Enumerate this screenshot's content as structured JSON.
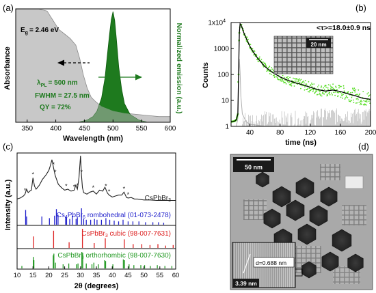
{
  "panels": {
    "a": {
      "letter": "(a)"
    },
    "b": {
      "letter": "(b)"
    },
    "c": {
      "letter": "(c)"
    },
    "d": {
      "letter": "(d)"
    }
  },
  "chart_data": [
    {
      "panel": "(a)",
      "type": "area",
      "xlabel": "Wavelength (nm)",
      "ylabel_left": "Absorbance",
      "ylabel_right": "Normalized emission (a.u.)",
      "xlim": [
        330,
        600
      ],
      "x_ticks": [
        "350",
        "400",
        "450",
        "500",
        "550",
        "600"
      ],
      "annotations": {
        "eg": "E",
        "eg_sub": "g",
        "eg_value": "= 2.46 eV",
        "lambda": "λ",
        "lambda_sub": "PL",
        "lambda_value": "= 500 nm",
        "fwhm": "FWHM = 27.5 nm",
        "qy": "QY = 72%"
      },
      "colors": {
        "absorbance": "#c8c8c8",
        "emission": "#1e7a1e",
        "overlap": "#7f9f7f"
      },
      "series": [
        {
          "x": [
            330,
            350,
            370,
            385,
            395,
            405,
            415,
            425,
            435,
            442,
            448,
            455,
            462,
            470,
            480,
            490,
            500,
            520,
            540,
            560,
            580,
            600
          ],
          "y": [
            1.0,
            1.0,
            1.0,
            0.98,
            0.9,
            0.82,
            0.78,
            0.74,
            0.68,
            0.56,
            0.42,
            0.3,
            0.22,
            0.18,
            0.14,
            0.12,
            0.1,
            0.08,
            0.07,
            0.06,
            0.05,
            0.05
          ]
        },
        {
          "x": [
            440,
            455,
            465,
            472,
            480,
            486,
            490,
            494,
            497,
            500,
            503,
            506,
            510,
            515,
            520,
            530,
            545,
            560,
            600
          ],
          "y": [
            0.0,
            0.02,
            0.05,
            0.1,
            0.22,
            0.4,
            0.6,
            0.8,
            0.93,
            1.0,
            0.92,
            0.75,
            0.5,
            0.3,
            0.17,
            0.07,
            0.02,
            0.0,
            0.0
          ]
        }
      ]
    },
    {
      "panel": "(b)",
      "type": "scatter",
      "xlabel": "time (ns)",
      "ylabel": "Counts",
      "y_scale": "log",
      "ylim": [
        1,
        10000
      ],
      "xlim": [
        15,
        200
      ],
      "x_ticks": [
        "40",
        "80",
        "120",
        "160",
        "200"
      ],
      "y_ticks": [
        "1",
        "10",
        "100",
        "1000",
        "1x10"
      ],
      "y_tick_exp": "4",
      "legend": "<τ>=18.0±0.9 ns",
      "scalebar": "20 nm",
      "colors": {
        "data": "#55dd22",
        "fit": "#000000",
        "irf": "#b0b0b0"
      },
      "series": [
        {
          "x": [
            15,
            20,
            22,
            24,
            25,
            26,
            27,
            28,
            30,
            32,
            35,
            40,
            45,
            50,
            60,
            70,
            80,
            90,
            100,
            110,
            120,
            130,
            140,
            150,
            160,
            170,
            180,
            190,
            200
          ],
          "y": [
            1.5,
            1.6,
            1.8,
            3,
            100,
            4000,
            9000,
            8500,
            6000,
            4000,
            2500,
            1200,
            700,
            430,
            200,
            120,
            80,
            60,
            48,
            40,
            32,
            26,
            23,
            25,
            22,
            18,
            15,
            12,
            11
          ]
        },
        {
          "x": [
            15,
            22,
            24,
            25,
            26,
            27,
            28,
            30,
            35,
            40,
            50,
            60,
            80,
            100
          ],
          "y": [
            1,
            1,
            2,
            50,
            400,
            120,
            15,
            3,
            1.5,
            1.2,
            1.1,
            1.0,
            1.0,
            1.0
          ]
        }
      ]
    },
    {
      "panel": "(c)",
      "type": "line",
      "xlabel": "2θ (degrees)",
      "ylabel": "Intensity (a.u.)",
      "xlim": [
        10,
        60
      ],
      "x_ticks": [
        "10",
        "15",
        "20",
        "25",
        "30",
        "35",
        "40",
        "45",
        "50",
        "55",
        "60"
      ],
      "colors": {
        "measured": "#222222",
        "cs4": "#2222cc",
        "cubic": "#dd2222",
        "ortho": "#229922"
      },
      "patterns": [
        {
          "name": "CsPbBr",
          "sub": "3",
          "tail": ""
        },
        {
          "name": "Cs",
          "sub": "4",
          "mid": "PbBr",
          "sub2": "6",
          "tail": " rombohedral (01-073-2478)"
        },
        {
          "name": "CsPbBr",
          "sub": "3",
          "tail": " cubic (98-007-7631)"
        },
        {
          "name": "CsPbBr",
          "sub": "3",
          "tail": " orthorhombic (98-007-7630)"
        }
      ],
      "measured": {
        "x": [
          10,
          11,
          12,
          12.5,
          13,
          13.5,
          14,
          14.5,
          15,
          15.5,
          16,
          17,
          18,
          19,
          20,
          20.5,
          21,
          21.5,
          22,
          23,
          24,
          25,
          26,
          27,
          28,
          28.5,
          29,
          29.5,
          30,
          30.3,
          30.6,
          31,
          32,
          33,
          34,
          35,
          36,
          37,
          37.7,
          38.5,
          39,
          40,
          41,
          42,
          43,
          43.7,
          44.5,
          45,
          46,
          47,
          48,
          50,
          52,
          54,
          56,
          58,
          60
        ],
        "y": [
          0.12,
          0.14,
          0.18,
          0.22,
          0.32,
          0.25,
          0.28,
          0.3,
          0.55,
          0.38,
          0.32,
          0.4,
          0.52,
          0.6,
          0.7,
          0.8,
          0.92,
          0.75,
          0.6,
          0.42,
          0.35,
          0.3,
          0.32,
          0.28,
          0.3,
          0.4,
          0.32,
          0.55,
          1.0,
          0.6,
          0.35,
          0.25,
          0.22,
          0.26,
          0.28,
          0.22,
          0.3,
          0.28,
          0.36,
          0.24,
          0.2,
          0.16,
          0.18,
          0.2,
          0.2,
          0.26,
          0.15,
          0.14,
          0.15,
          0.12,
          0.12,
          0.1,
          0.1,
          0.09,
          0.09,
          0.09,
          0.09
        ]
      },
      "stars": [
        12.5,
        15,
        21.5,
        22,
        25.5,
        28,
        29,
        30.3,
        34,
        38,
        39,
        43.7,
        45
      ],
      "cs4_peaks": {
        "x": [
          12.7,
          13.0,
          17.8,
          20.2,
          21.8,
          22.4,
          22.9,
          25.3,
          25.6,
          26.6,
          27.4,
          28.6,
          29.0,
          30.3,
          31.0,
          31.8,
          33.2,
          34.4,
          35.2,
          36.6,
          38.0,
          39.2,
          40.6,
          42.0,
          43.4,
          45.0,
          46.5,
          48.4,
          50.5,
          52.8,
          54.6,
          56.2
        ],
        "y": [
          0.9,
          0.5,
          0.5,
          0.4,
          0.55,
          0.95,
          0.6,
          0.5,
          0.45,
          0.35,
          0.55,
          0.35,
          0.45,
          1.0,
          0.35,
          0.3,
          0.3,
          0.35,
          0.3,
          0.3,
          0.4,
          0.3,
          0.25,
          0.2,
          0.3,
          0.2,
          0.2,
          0.2,
          0.15,
          0.15,
          0.15,
          0.12
        ]
      },
      "cubic_peaks": {
        "x": [
          15.2,
          21.5,
          26.4,
          30.6,
          34.3,
          37.8,
          43.8,
          46.6,
          49.3,
          51.9,
          54.4,
          56.8,
          59.2
        ],
        "y": [
          0.6,
          0.9,
          0.3,
          1.0,
          0.25,
          0.5,
          0.45,
          0.2,
          0.2,
          0.15,
          0.2,
          0.12,
          0.15
        ]
      },
      "ortho_peaks": {
        "x": [
          11.5,
          15.1,
          15.3,
          21.4,
          21.6,
          22.1,
          24.5,
          26.3,
          28.7,
          29.2,
          30.4,
          30.7,
          31.8,
          33.6,
          34.2,
          35.6,
          37.6,
          37.9,
          40.2,
          43.5,
          43.9,
          45.3,
          46.8,
          49.0,
          50.2,
          52.0,
          54.2,
          56.6,
          58.8
        ],
        "y": [
          0.15,
          0.7,
          0.5,
          0.8,
          0.9,
          0.35,
          0.25,
          0.3,
          0.25,
          0.3,
          1.0,
          0.95,
          0.3,
          0.25,
          0.35,
          0.25,
          0.5,
          0.45,
          0.25,
          0.55,
          0.5,
          0.25,
          0.2,
          0.2,
          0.2,
          0.15,
          0.2,
          0.15,
          0.15
        ]
      }
    },
    {
      "panel": "(d)",
      "type": "image",
      "scalebar": "50 nm",
      "inset_scalebar": "3.39 nm",
      "spacing_label": "d=0.688 nm"
    }
  ]
}
